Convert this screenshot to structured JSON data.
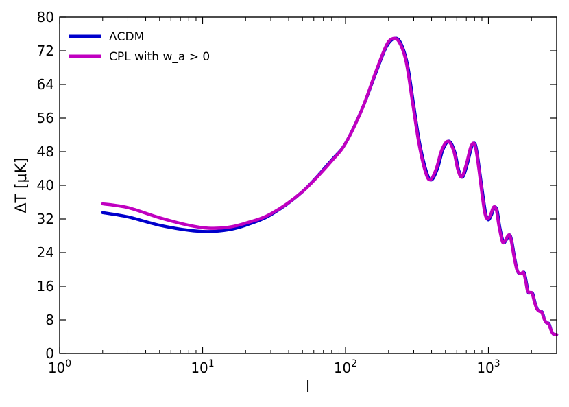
{
  "chart_data": {
    "type": "line",
    "xlabel": "l",
    "ylabel": "ΔT [μK]",
    "xscale": "log",
    "xlim": [
      1,
      3000
    ],
    "ylim": [
      0,
      80
    ],
    "y_ticks": [
      0,
      8,
      16,
      24,
      32,
      40,
      48,
      56,
      64,
      72,
      80
    ],
    "x_major_ticks": [
      {
        "value": 1,
        "base": "10",
        "exp": "0"
      },
      {
        "value": 10,
        "base": "10",
        "exp": "1"
      },
      {
        "value": 100,
        "base": "10",
        "exp": "2"
      },
      {
        "value": 1000,
        "base": "10",
        "exp": "3"
      }
    ],
    "grid": false,
    "legend_position": "upper-left",
    "series": [
      {
        "name": "ΛCDM",
        "color": "#0000cc",
        "points": [
          [
            2,
            33.5
          ],
          [
            3,
            32.5
          ],
          [
            5,
            30.5
          ],
          [
            8,
            29.3
          ],
          [
            11,
            29.0
          ],
          [
            15,
            29.4
          ],
          [
            20,
            30.5
          ],
          [
            30,
            33
          ],
          [
            50,
            38.5
          ],
          [
            80,
            46
          ],
          [
            100,
            50
          ],
          [
            130,
            58
          ],
          [
            160,
            66
          ],
          [
            190,
            72.5
          ],
          [
            215,
            74.8
          ],
          [
            240,
            74.2
          ],
          [
            270,
            69
          ],
          [
            300,
            59
          ],
          [
            330,
            50
          ],
          [
            370,
            43
          ],
          [
            400,
            41.3
          ],
          [
            440,
            44
          ],
          [
            480,
            48.5
          ],
          [
            530,
            50.5
          ],
          [
            580,
            48
          ],
          [
            620,
            43.5
          ],
          [
            660,
            42
          ],
          [
            710,
            45
          ],
          [
            760,
            49
          ],
          [
            800,
            50
          ],
          [
            830,
            48
          ],
          [
            870,
            43
          ],
          [
            920,
            37
          ],
          [
            960,
            33
          ],
          [
            1000,
            31.8
          ],
          [
            1050,
            33
          ],
          [
            1100,
            34.8
          ],
          [
            1150,
            34
          ],
          [
            1200,
            30
          ],
          [
            1270,
            26.5
          ],
          [
            1330,
            27
          ],
          [
            1400,
            28.2
          ],
          [
            1450,
            27
          ],
          [
            1520,
            23
          ],
          [
            1600,
            19.5
          ],
          [
            1700,
            19
          ],
          [
            1780,
            19.2
          ],
          [
            1850,
            16.5
          ],
          [
            1900,
            14.5
          ],
          [
            1980,
            14.5
          ],
          [
            2040,
            14.2
          ],
          [
            2120,
            12
          ],
          [
            2200,
            10.5
          ],
          [
            2300,
            10
          ],
          [
            2380,
            9.8
          ],
          [
            2460,
            8.2
          ],
          [
            2550,
            7.3
          ],
          [
            2650,
            7.1
          ],
          [
            2750,
            5.5
          ],
          [
            2850,
            4.6
          ],
          [
            3000,
            4.5
          ]
        ]
      },
      {
        "name": "CPL with w_a > 0",
        "color": "#c000c0",
        "points": [
          [
            2,
            35.6
          ],
          [
            3,
            34.7
          ],
          [
            5,
            32.3
          ],
          [
            8,
            30.5
          ],
          [
            11,
            29.8
          ],
          [
            15,
            30
          ],
          [
            20,
            31
          ],
          [
            30,
            33.2
          ],
          [
            50,
            38.5
          ],
          [
            80,
            45.8
          ],
          [
            100,
            50
          ],
          [
            130,
            58
          ],
          [
            160,
            66.3
          ],
          [
            190,
            72.8
          ],
          [
            210,
            74.8
          ],
          [
            235,
            74.3
          ],
          [
            265,
            69.5
          ],
          [
            295,
            59.5
          ],
          [
            325,
            50.3
          ],
          [
            360,
            43.5
          ],
          [
            390,
            41.3
          ],
          [
            430,
            43.8
          ],
          [
            470,
            48.3
          ],
          [
            520,
            50.5
          ],
          [
            570,
            48.3
          ],
          [
            610,
            43.8
          ],
          [
            650,
            42
          ],
          [
            700,
            45
          ],
          [
            750,
            49
          ],
          [
            790,
            50
          ],
          [
            820,
            48.3
          ],
          [
            860,
            43.5
          ],
          [
            905,
            37.5
          ],
          [
            945,
            33.3
          ],
          [
            985,
            32
          ],
          [
            1035,
            33
          ],
          [
            1085,
            34.8
          ],
          [
            1135,
            34.2
          ],
          [
            1185,
            30.3
          ],
          [
            1255,
            26.5
          ],
          [
            1315,
            27
          ],
          [
            1385,
            28.2
          ],
          [
            1435,
            27.3
          ],
          [
            1505,
            23.3
          ],
          [
            1585,
            19.8
          ],
          [
            1680,
            19
          ],
          [
            1760,
            19.2
          ],
          [
            1830,
            16.8
          ],
          [
            1880,
            14.8
          ],
          [
            1960,
            14.5
          ],
          [
            2020,
            14.3
          ],
          [
            2100,
            12.2
          ],
          [
            2180,
            10.6
          ],
          [
            2280,
            10
          ],
          [
            2360,
            9.8
          ],
          [
            2440,
            8.4
          ],
          [
            2530,
            7.4
          ],
          [
            2630,
            7.1
          ],
          [
            2730,
            5.7
          ],
          [
            2830,
            4.7
          ],
          [
            3000,
            4.5
          ]
        ]
      }
    ]
  }
}
